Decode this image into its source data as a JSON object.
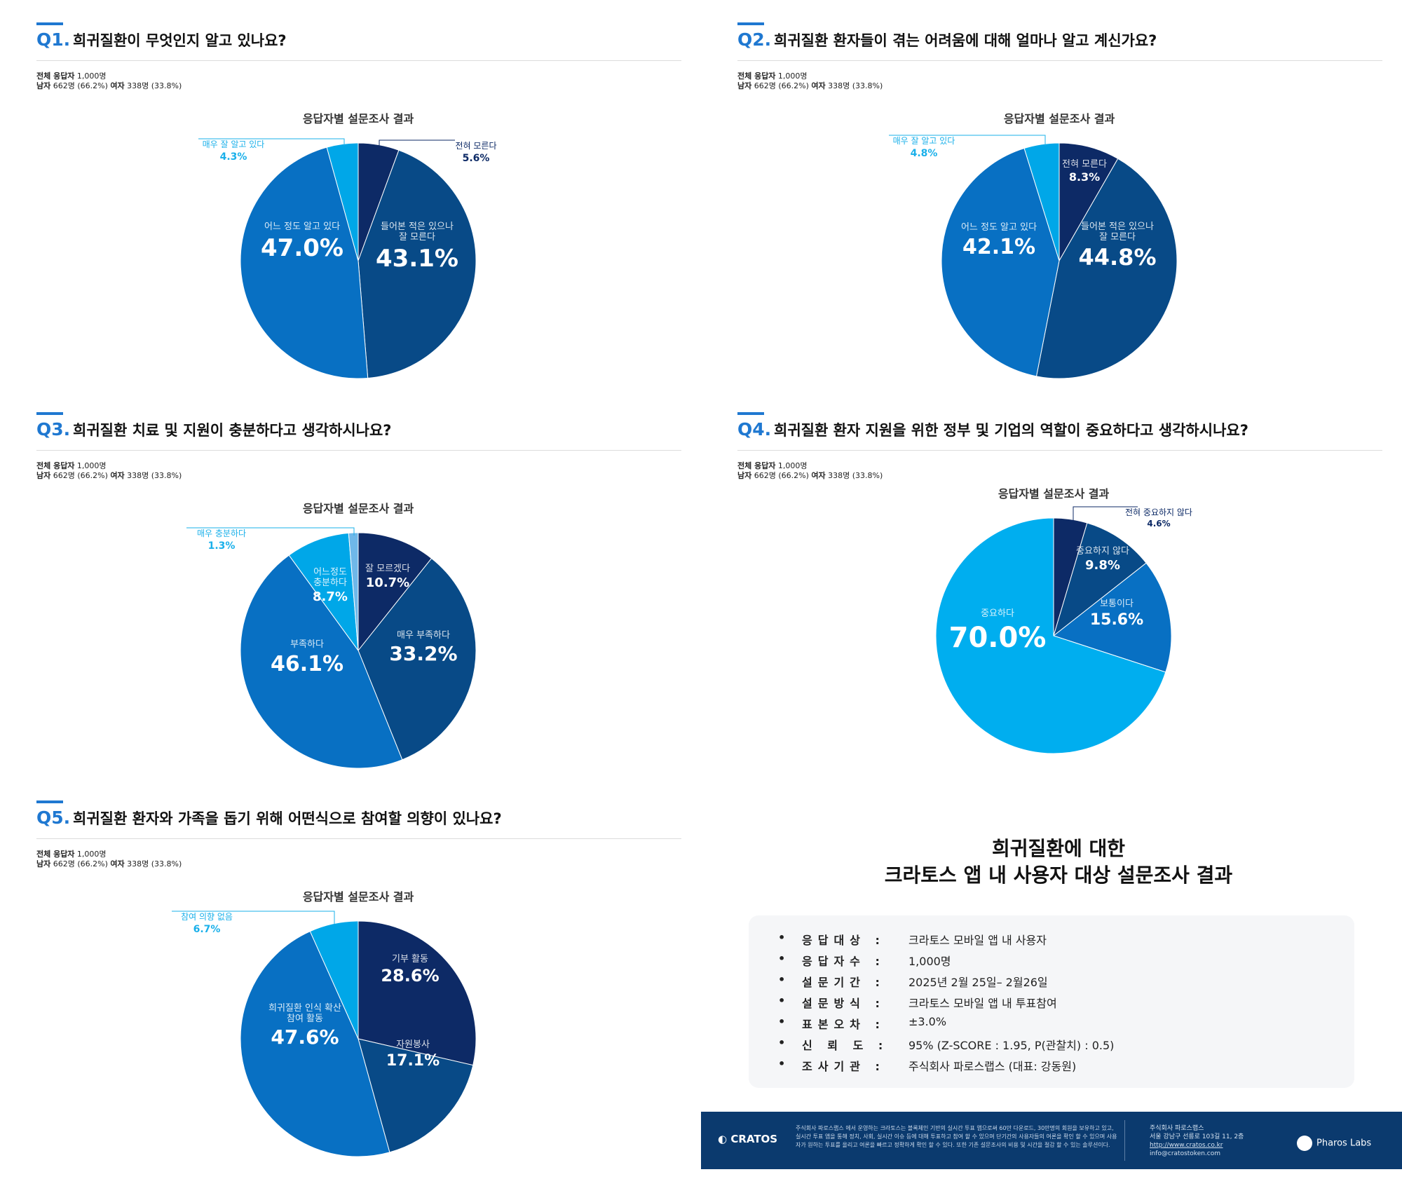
{
  "meta": {
    "total_label": "전체 응답자",
    "total_value": "1,000명",
    "male_label": "남자",
    "male_value": "662명 (66.2%)",
    "female_label": "여자",
    "female_value": "338명 (33.8%)"
  },
  "chart_subtitle": "응답자별 설문조사 결과",
  "chart_data": [
    {
      "type": "pie",
      "number": "Q1.",
      "title": "희귀질환이 무엇인지 알고 있나요?",
      "slices": [
        {
          "label": "전혀 모른다",
          "value": 5.6,
          "pct": "5.6%",
          "color": "#0d2a66",
          "outside": true
        },
        {
          "label": "들어본 적은 있으나\n잘 모른다",
          "value": 43.1,
          "pct": "43.1%",
          "color": "#084a87"
        },
        {
          "label": "어느 정도 알고 있다",
          "value": 47.0,
          "pct": "47.0%",
          "color": "#0870c3"
        },
        {
          "label": "매우 잘 알고 있다",
          "value": 4.3,
          "pct": "4.3%",
          "color": "#00a7e8",
          "outside": true
        }
      ]
    },
    {
      "type": "pie",
      "number": "Q2.",
      "title": "희귀질환 환자들이 겪는 어려움에 대해 얼마나 알고 계신가요?",
      "slices": [
        {
          "label": "전혀 모른다",
          "value": 8.3,
          "pct": "8.3%",
          "color": "#0d2a66"
        },
        {
          "label": "들어본 적은 있으나\n잘 모른다",
          "value": 44.8,
          "pct": "44.8%",
          "color": "#084a87"
        },
        {
          "label": "어느 정도 알고 있다",
          "value": 42.1,
          "pct": "42.1%",
          "color": "#0870c3"
        },
        {
          "label": "매우 잘 알고 있다",
          "value": 4.8,
          "pct": "4.8%",
          "color": "#00a7e8",
          "outside": true
        }
      ]
    },
    {
      "type": "pie",
      "number": "Q3.",
      "title": "희귀질환 치료 및 지원이 충분하다고 생각하시나요?",
      "slices": [
        {
          "label": "잘 모르겠다",
          "value": 10.7,
          "pct": "10.7%",
          "color": "#0d2a66"
        },
        {
          "label": "매우 부족하다",
          "value": 33.2,
          "pct": "33.2%",
          "color": "#084a87"
        },
        {
          "label": "부족하다",
          "value": 46.1,
          "pct": "46.1%",
          "color": "#0870c3"
        },
        {
          "label": "어느정도\n충분하다",
          "value": 8.7,
          "pct": "8.7%",
          "color": "#00a7e8"
        },
        {
          "label": "매우 충분하다",
          "value": 1.3,
          "pct": "1.3%",
          "color": "#6fb8e9",
          "outside": true
        }
      ]
    },
    {
      "type": "pie",
      "number": "Q4.",
      "title": "희귀질환 환자 지원을 위한 정부 및 기업의 역할이 중요하다고 생각하시나요?",
      "slices": [
        {
          "label": "전혀 중요하지 않다",
          "value": 4.6,
          "pct": "4.6%",
          "color": "#0d2a66",
          "outside": true
        },
        {
          "label": "중요하지 않다",
          "value": 9.8,
          "pct": "9.8%",
          "color": "#084a87"
        },
        {
          "label": "보통이다",
          "value": 15.6,
          "pct": "15.6%",
          "color": "#0870c3"
        },
        {
          "label": "중요하다",
          "value": 70.0,
          "pct": "70.0%",
          "color": "#00aeef"
        }
      ]
    },
    {
      "type": "pie",
      "number": "Q5.",
      "title": "희귀질환 환자와 가족을 돕기 위해 어떤식으로 참여할 의향이 있나요?",
      "slices": [
        {
          "label": "기부 활동",
          "value": 28.6,
          "pct": "28.6%",
          "color": "#0d2a66"
        },
        {
          "label": "자원봉사",
          "value": 17.1,
          "pct": "17.1%",
          "color": "#084a87"
        },
        {
          "label": "희귀질환 인식 확산\n참여 활동",
          "value": 47.6,
          "pct": "47.6%",
          "color": "#0870c3"
        },
        {
          "label": "참여 의향 없음",
          "value": 6.7,
          "pct": "6.7%",
          "color": "#00a7e8",
          "outside": true
        }
      ]
    }
  ],
  "summary": {
    "title_line1": "희귀질환에 대한",
    "title_line2": "크라토스 앱 내 사용자 대상 설문조사 결과",
    "rows": [
      {
        "label": "응답대상 :",
        "value": "크라토스 모바일 앱 내 사용자"
      },
      {
        "label": "응답자수 :",
        "value": "1,000명"
      },
      {
        "label": "설문기간 :",
        "value": "2025년 2월 25일– 2월26일"
      },
      {
        "label": "설문방식 :",
        "value": "크라토스 모바일 앱 내 투표참여"
      },
      {
        "label": "표본오차 :",
        "value": "±3.0%"
      },
      {
        "label": "신 뢰 도 :",
        "value": "95% (Z-SCORE : 1.95, P(관찰치) : 0.5)"
      },
      {
        "label": "조사기관 :",
        "value": "주식회사 파로스랩스 (대표: 강동원)"
      }
    ]
  },
  "footer": {
    "logo": "CRATOS",
    "description": "주식회사 파로스랩스 에서 운영하는 크라토스는 블록체인 기반의 실시간 투표 앱으로써 60만 다운로드, 30만명의 회원을 보유하고 있고, 실시간 투표 앱을 통해 정치, 사회, 실시간 이슈 등에 대해 투표하고 참여 할 수 있으며 단기간의 사용자들의 여론을 확인 할 수 있으며 사용자가 원하는 투표를 올리고 여론을 빠르고 정확하게 확인 할 수 있다. 또한 기존 설문조사의 비용 및 시간을 절감 할 수 있는 솔루션이다.",
    "company": "주식회사 파로스랩스",
    "address": "서울 강남구 선릉로 103길 11, 2층",
    "website": "http://www.cratos.co.kr",
    "email": "info@cratostoken.com",
    "partner": "Pharos Labs"
  }
}
